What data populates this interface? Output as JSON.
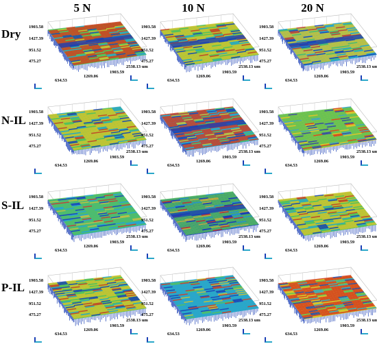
{
  "columns": [
    "5 N",
    "10 N",
    "20 N"
  ],
  "rows": [
    "Dry",
    "N-IL",
    "S-IL",
    "P-IL"
  ],
  "axis_ticks": {
    "y": [
      "1903.58",
      "1427.39",
      "951.52",
      "475.27"
    ],
    "x": [
      "634.53",
      "1269.06",
      "1903.59",
      "2538.13 um"
    ]
  },
  "colors": {
    "low": "#1a3fb5",
    "mid_low": "#2aa7c9",
    "mid": "#56c25a",
    "mid_high": "#d4c52e",
    "high": "#d63a1e",
    "grid": "#c8c8c8",
    "box": "#b8b8b8"
  },
  "panels": [
    {
      "row": "Dry",
      "col": "5 N",
      "pattern": "red-dominant with blue-green band"
    },
    {
      "row": "Dry",
      "col": "10 N",
      "pattern": "mixed green-red with blue groove"
    },
    {
      "row": "Dry",
      "col": "20 N",
      "pattern": "mixed with deep blue groove"
    },
    {
      "row": "N-IL",
      "col": "5 N",
      "pattern": "green-red mixed"
    },
    {
      "row": "N-IL",
      "col": "10 N",
      "pattern": "red with blue groove"
    },
    {
      "row": "N-IL",
      "col": "20 N",
      "pattern": "green-red mixed with blue streak"
    },
    {
      "row": "S-IL",
      "col": "5 N",
      "pattern": "green-cyan mixed"
    },
    {
      "row": "S-IL",
      "col": "10 N",
      "pattern": "green with deep blue groove"
    },
    {
      "row": "S-IL",
      "col": "20 N",
      "pattern": "green-red mixed"
    },
    {
      "row": "P-IL",
      "col": "5 N",
      "pattern": "green-red mixed"
    },
    {
      "row": "P-IL",
      "col": "10 N",
      "pattern": "cyan-blue streaked"
    },
    {
      "row": "P-IL",
      "col": "20 N",
      "pattern": "red-orange dominant"
    }
  ]
}
